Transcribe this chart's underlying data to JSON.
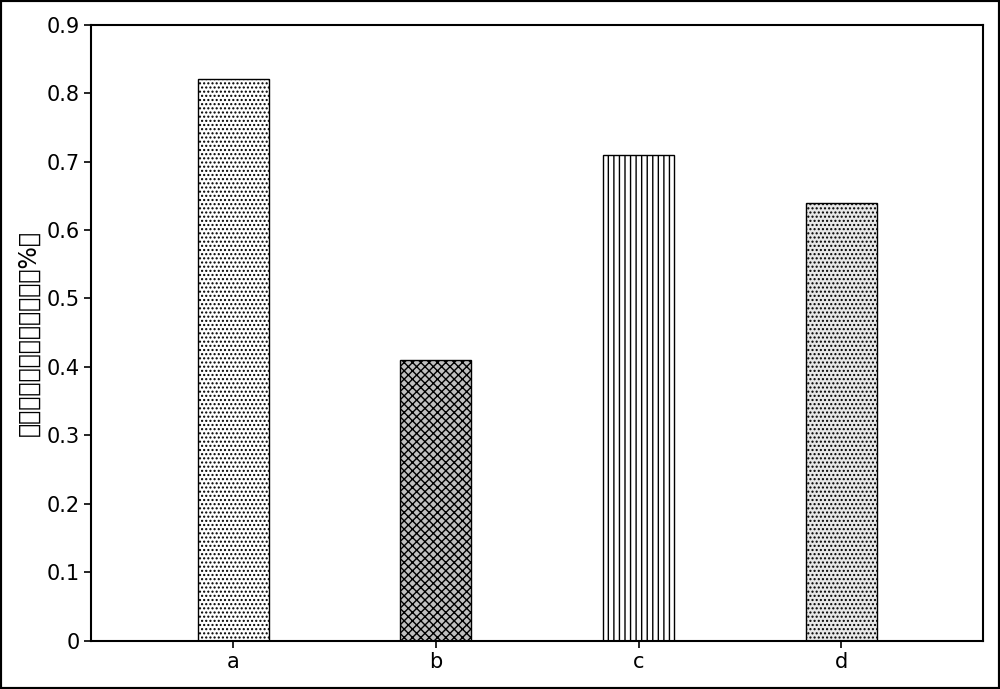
{
  "categories": [
    "a",
    "b",
    "c",
    "d"
  ],
  "values": [
    0.82,
    0.41,
    0.71,
    0.64
  ],
  "ylabel": "小管形成数目相对百分比（%）",
  "ylim": [
    0,
    0.9
  ],
  "yticks": [
    0,
    0.1,
    0.2,
    0.3,
    0.4,
    0.5,
    0.6,
    0.7,
    0.8,
    0.9
  ],
  "bar_width": 0.35,
  "background_color": "#ffffff",
  "ylabel_fontsize": 17,
  "tick_fontsize": 15,
  "fig_width": 10.0,
  "fig_height": 6.89,
  "bar_positions": [
    1,
    2,
    3,
    4
  ],
  "xlim": [
    0.3,
    4.7
  ]
}
